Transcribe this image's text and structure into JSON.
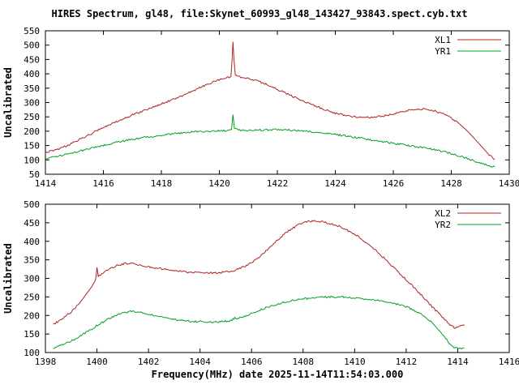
{
  "title": "HIRES Spectrum, gl48, file:Skynet_60993_gl48_143427_93843.spect.cyb.txt",
  "xlabel": "Frequency(MHz) date 2025-11-14T11:54:03.000",
  "ylabel": "Uncalibrated",
  "colors": {
    "red": "#b22222",
    "green": "#00a020",
    "axis": "#000000"
  },
  "chart_data": [
    {
      "type": "line",
      "xlim": [
        1414,
        1430
      ],
      "xtick_step": 2,
      "ylim": [
        50,
        550
      ],
      "ytick_step": 50,
      "grid": false,
      "legend_position": "top-right",
      "xticks": [
        1414,
        1416,
        1418,
        1420,
        1422,
        1424,
        1426,
        1428,
        1430
      ],
      "yticks": [
        50,
        100,
        150,
        200,
        250,
        300,
        350,
        400,
        450,
        500,
        550
      ],
      "series": [
        {
          "name": "XL1",
          "color": "#b22222",
          "points": [
            [
              1414.0,
              127
            ],
            [
              1414.3,
              133
            ],
            [
              1414.7,
              148
            ],
            [
              1415.0,
              163
            ],
            [
              1415.4,
              182
            ],
            [
              1415.8,
              203
            ],
            [
              1416.2,
              222
            ],
            [
              1416.6,
              240
            ],
            [
              1417.0,
              257
            ],
            [
              1417.4,
              272
            ],
            [
              1417.8,
              288
            ],
            [
              1418.2,
              303
            ],
            [
              1418.6,
              318
            ],
            [
              1419.0,
              337
            ],
            [
              1419.4,
              355
            ],
            [
              1419.8,
              372
            ],
            [
              1420.1,
              382
            ],
            [
              1420.3,
              388
            ],
            [
              1420.4,
              391
            ],
            [
              1420.44,
              450
            ],
            [
              1420.47,
              512
            ],
            [
              1420.5,
              455
            ],
            [
              1420.55,
              393
            ],
            [
              1420.7,
              389
            ],
            [
              1421.0,
              384
            ],
            [
              1421.3,
              376
            ],
            [
              1421.6,
              364
            ],
            [
              1422.0,
              346
            ],
            [
              1422.4,
              327
            ],
            [
              1422.8,
              309
            ],
            [
              1423.2,
              293
            ],
            [
              1423.6,
              277
            ],
            [
              1424.0,
              263
            ],
            [
              1424.4,
              254
            ],
            [
              1424.8,
              249
            ],
            [
              1425.2,
              248
            ],
            [
              1425.6,
              252
            ],
            [
              1426.0,
              260
            ],
            [
              1426.4,
              270
            ],
            [
              1426.8,
              276
            ],
            [
              1427.1,
              277
            ],
            [
              1427.4,
              272
            ],
            [
              1427.8,
              257
            ],
            [
              1428.2,
              233
            ],
            [
              1428.6,
              196
            ],
            [
              1429.0,
              152
            ],
            [
              1429.3,
              118
            ],
            [
              1429.5,
              102
            ]
          ]
        },
        {
          "name": "YR1",
          "color": "#00a020",
          "points": [
            [
              1414.0,
              104
            ],
            [
              1414.4,
              112
            ],
            [
              1414.8,
              121
            ],
            [
              1415.2,
              131
            ],
            [
              1415.6,
              141
            ],
            [
              1416.0,
              151
            ],
            [
              1416.4,
              160
            ],
            [
              1416.8,
              168
            ],
            [
              1417.2,
              175
            ],
            [
              1417.6,
              181
            ],
            [
              1418.0,
              186
            ],
            [
              1418.4,
              191
            ],
            [
              1418.8,
              195
            ],
            [
              1419.2,
              198
            ],
            [
              1419.6,
              200
            ],
            [
              1420.0,
              202
            ],
            [
              1420.3,
              203
            ],
            [
              1420.42,
              206
            ],
            [
              1420.47,
              258
            ],
            [
              1420.52,
              208
            ],
            [
              1420.7,
              204
            ],
            [
              1421.0,
              203
            ],
            [
              1421.4,
              204
            ],
            [
              1421.8,
              205
            ],
            [
              1422.2,
              205
            ],
            [
              1422.6,
              203
            ],
            [
              1423.0,
              200
            ],
            [
              1423.4,
              196
            ],
            [
              1423.8,
              191
            ],
            [
              1424.2,
              186
            ],
            [
              1424.6,
              180
            ],
            [
              1425.0,
              174
            ],
            [
              1425.4,
              167
            ],
            [
              1425.8,
              161
            ],
            [
              1426.2,
              155
            ],
            [
              1426.6,
              149
            ],
            [
              1427.0,
              143
            ],
            [
              1427.4,
              136
            ],
            [
              1427.8,
              127
            ],
            [
              1428.2,
              116
            ],
            [
              1428.6,
              103
            ],
            [
              1429.0,
              89
            ],
            [
              1429.3,
              80
            ],
            [
              1429.5,
              75
            ]
          ]
        }
      ]
    },
    {
      "type": "line",
      "xlim": [
        1398,
        1416
      ],
      "xtick_step": 2,
      "ylim": [
        100,
        500
      ],
      "ytick_step": 50,
      "grid": false,
      "legend_position": "top-right",
      "xticks": [
        1398,
        1400,
        1402,
        1404,
        1406,
        1408,
        1410,
        1412,
        1414,
        1416
      ],
      "yticks": [
        100,
        150,
        200,
        250,
        300,
        350,
        400,
        450,
        500
      ],
      "series": [
        {
          "name": "XL2",
          "color": "#b22222",
          "points": [
            [
              1398.3,
              176
            ],
            [
              1398.6,
              188
            ],
            [
              1399.0,
              210
            ],
            [
              1399.4,
              240
            ],
            [
              1399.8,
              278
            ],
            [
              1399.95,
              298
            ],
            [
              1400.0,
              328
            ],
            [
              1400.05,
              305
            ],
            [
              1400.2,
              312
            ],
            [
              1400.5,
              326
            ],
            [
              1400.8,
              335
            ],
            [
              1401.1,
              340
            ],
            [
              1401.4,
              339
            ],
            [
              1401.8,
              334
            ],
            [
              1402.2,
              329
            ],
            [
              1402.6,
              325
            ],
            [
              1403.0,
              321
            ],
            [
              1403.4,
              318
            ],
            [
              1403.8,
              316
            ],
            [
              1404.2,
              315
            ],
            [
              1404.6,
              315
            ],
            [
              1405.0,
              317
            ],
            [
              1405.4,
              323
            ],
            [
              1405.8,
              334
            ],
            [
              1406.2,
              352
            ],
            [
              1406.6,
              376
            ],
            [
              1407.0,
              403
            ],
            [
              1407.4,
              427
            ],
            [
              1407.8,
              444
            ],
            [
              1408.1,
              452
            ],
            [
              1408.4,
              455
            ],
            [
              1408.7,
              453
            ],
            [
              1409.0,
              449
            ],
            [
              1409.4,
              440
            ],
            [
              1409.8,
              427
            ],
            [
              1410.2,
              410
            ],
            [
              1410.6,
              389
            ],
            [
              1411.0,
              364
            ],
            [
              1411.4,
              337
            ],
            [
              1411.8,
              310
            ],
            [
              1412.2,
              283
            ],
            [
              1412.6,
              254
            ],
            [
              1413.0,
              224
            ],
            [
              1413.4,
              196
            ],
            [
              1413.7,
              175
            ],
            [
              1413.9,
              166
            ],
            [
              1414.1,
              170
            ],
            [
              1414.25,
              176
            ]
          ]
        },
        {
          "name": "YR2",
          "color": "#00a020",
          "points": [
            [
              1398.3,
              112
            ],
            [
              1398.6,
              119
            ],
            [
              1399.0,
              131
            ],
            [
              1399.4,
              147
            ],
            [
              1399.8,
              164
            ],
            [
              1400.2,
              181
            ],
            [
              1400.6,
              196
            ],
            [
              1401.0,
              207
            ],
            [
              1401.3,
              211
            ],
            [
              1401.6,
              209
            ],
            [
              1402.0,
              204
            ],
            [
              1402.4,
              197
            ],
            [
              1402.8,
              191
            ],
            [
              1403.2,
              187
            ],
            [
              1403.6,
              184
            ],
            [
              1404.0,
              183
            ],
            [
              1404.4,
              182
            ],
            [
              1404.8,
              183
            ],
            [
              1405.2,
              186
            ],
            [
              1405.35,
              193
            ],
            [
              1405.5,
              192
            ],
            [
              1405.8,
              200
            ],
            [
              1406.2,
              211
            ],
            [
              1406.6,
              222
            ],
            [
              1407.0,
              231
            ],
            [
              1407.4,
              238
            ],
            [
              1407.8,
              243
            ],
            [
              1408.2,
              246
            ],
            [
              1408.6,
              248
            ],
            [
              1409.0,
              250
            ],
            [
              1409.4,
              250
            ],
            [
              1409.8,
              248
            ],
            [
              1410.2,
              246
            ],
            [
              1410.6,
              243
            ],
            [
              1411.0,
              239
            ],
            [
              1411.4,
              234
            ],
            [
              1411.8,
              228
            ],
            [
              1412.2,
              218
            ],
            [
              1412.6,
              203
            ],
            [
              1413.0,
              181
            ],
            [
              1413.4,
              150
            ],
            [
              1413.7,
              123
            ],
            [
              1413.9,
              112
            ],
            [
              1414.1,
              110
            ],
            [
              1414.25,
              112
            ]
          ]
        }
      ]
    }
  ]
}
